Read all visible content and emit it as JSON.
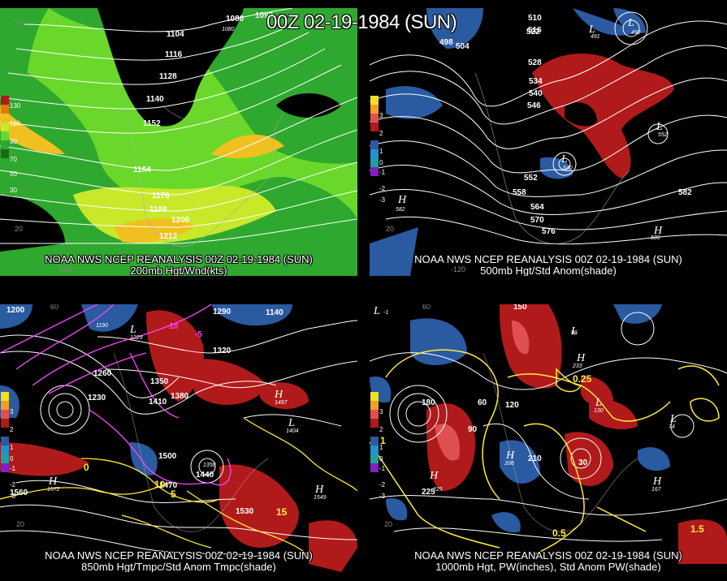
{
  "header": {
    "title": "00Z 02-19-1984 (SUN)"
  },
  "colors": {
    "background": "#000000",
    "wind_light": "#2ea82e",
    "wind_mid": "#6ad82a",
    "wind_high": "#c8e82a",
    "wind_max": "#f0c020",
    "anom_pos": "#b01a1a",
    "anom_neg": "#2a5aa0",
    "contour": "#ffffff",
    "temp_contour": "#ff44ff",
    "pw_contour": "#ffeb3b"
  },
  "panels": [
    {
      "caption_line1": "NOAA NWS NCEP REANALYSIS 00Z 02-19-1984 (SUN)",
      "caption_line2": "200mb Hgt/Wnd(kts)",
      "legend": [
        "130",
        "110",
        "90",
        "70",
        "50",
        "30"
      ],
      "contour_labels": [
        "1104",
        "1116",
        "1128",
        "1140",
        "1152",
        "1164",
        "1176",
        "1188",
        "1200",
        "1212",
        "1080",
        "1092"
      ],
      "extremes": [
        {
          "type": "L",
          "value": "1080"
        }
      ],
      "axis": [
        "-120",
        "50",
        "20"
      ]
    },
    {
      "caption_line1": "NOAA NWS NCEP REANALYSIS 00Z 02-19-1984 (SUN)",
      "caption_line2": "500mb Hgt/Std Anom(shade)",
      "legend": [
        "3",
        "2",
        "1",
        "0",
        "-1",
        "-2",
        "-3"
      ],
      "contour_labels": [
        "510",
        "516",
        "522",
        "528",
        "534",
        "540",
        "546",
        "552",
        "558",
        "564",
        "570",
        "576",
        "582",
        "498",
        "504"
      ],
      "extremes": [
        {
          "type": "L",
          "value": "492"
        },
        {
          "type": "L",
          "value": "491"
        },
        {
          "type": "L",
          "value": "552"
        },
        {
          "type": "L",
          "value": "540"
        },
        {
          "type": "H",
          "value": "582"
        },
        {
          "type": "H",
          "value": "586"
        }
      ],
      "axis": [
        "-120",
        "20"
      ]
    },
    {
      "caption_line1": "NOAA NWS NCEP REANALYSIS 00Z 02-19-1984 (SUN)",
      "caption_line2": "850mb Hgt/Tmpc/Std Anom Tmpc(shade)",
      "legend": [
        "3",
        "2",
        "1",
        "0",
        "-1",
        "-2",
        "-3"
      ],
      "contour_labels": [
        "1290",
        "1320",
        "1350",
        "1380",
        "1410",
        "1440",
        "1470",
        "1500",
        "1530",
        "1560",
        "1260",
        "1230",
        "1140",
        "1200",
        "-10",
        "-5",
        "5",
        "10",
        "15",
        "0"
      ],
      "extremes": [
        {
          "type": "L",
          "value": "1229"
        },
        {
          "type": "L",
          "value": "1190"
        },
        {
          "type": "H",
          "value": "1572"
        },
        {
          "type": "H",
          "value": "1549"
        },
        {
          "type": "H",
          "value": "1497"
        },
        {
          "type": "L",
          "value": "1404"
        },
        {
          "type": "L",
          "value": "1358"
        }
      ],
      "axis": [
        "60",
        "20"
      ]
    },
    {
      "caption_line1": "NOAA NWS NCEP REANALYSIS 00Z 02-19-1984 (SUN)",
      "caption_line2": "1000mb Hgt, PW(inches), Std Anom PW(shade)",
      "legend": [
        "3",
        "2",
        "1",
        "0",
        "-1",
        "-2",
        "-3"
      ],
      "contour_labels": [
        "150",
        "120",
        "90",
        "60",
        "180",
        "210",
        "0.25",
        "0.5",
        "1",
        "1.5",
        "225",
        "30"
      ],
      "extremes": [
        {
          "type": "L",
          "value": "-1"
        },
        {
          "type": "H",
          "value": "233"
        },
        {
          "type": "H",
          "value": "225"
        },
        {
          "type": "H",
          "value": "167"
        },
        {
          "type": "L",
          "value": "74"
        },
        {
          "type": "L",
          "value": "96"
        },
        {
          "type": "L",
          "value": "130"
        },
        {
          "type": "H",
          "value": "206"
        }
      ],
      "axis": [
        "60",
        "20"
      ]
    }
  ]
}
